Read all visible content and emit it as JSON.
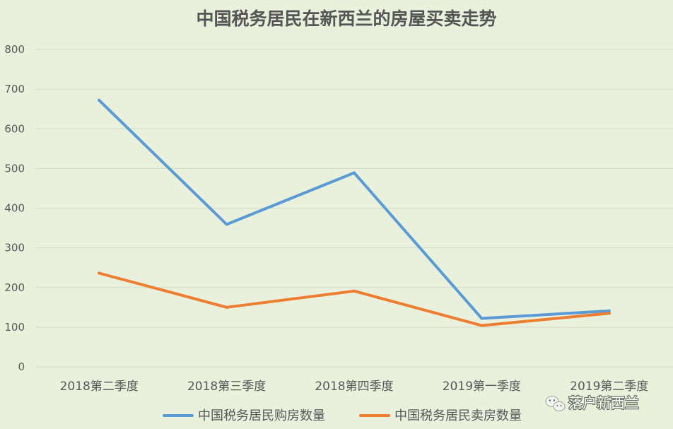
{
  "chart_data": {
    "type": "line",
    "title": "中国税务居民在新西兰的房屋买卖走势",
    "categories": [
      "2018第二季度",
      "2018第三季度",
      "2018第四季度",
      "2019第一季度",
      "2019第二季度"
    ],
    "series": [
      {
        "name": "中国税务居民购房数量",
        "color": "#5b9bd5",
        "values": [
          672,
          359,
          489,
          122,
          141
        ]
      },
      {
        "name": "中国税务居民卖房数量",
        "color": "#ed7d31",
        "values": [
          236,
          150,
          191,
          104,
          135
        ]
      }
    ],
    "ylim": [
      0,
      800
    ],
    "yticks": [
      "0",
      "100",
      "200",
      "300",
      "400",
      "500",
      "600",
      "700",
      "800"
    ],
    "grid": true,
    "legend_position": "bottom"
  },
  "watermark": {
    "icon": "wechat-icon",
    "text": "落户新西兰"
  }
}
